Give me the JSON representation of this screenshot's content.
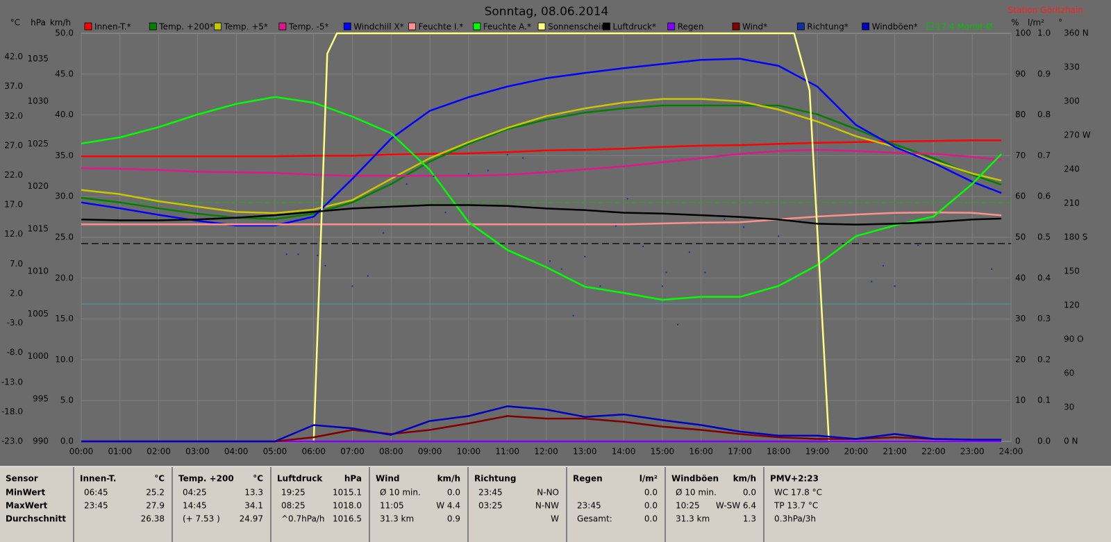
{
  "title": "Sonntag, 08.06.2014",
  "station": "Station Göritzhain",
  "chart_data": {
    "type": "line",
    "xlim": [
      0,
      24
    ],
    "xticks": [
      {
        "value": 0,
        "label": "00:00"
      },
      {
        "value": 1,
        "label": "01:00"
      },
      {
        "value": 2,
        "label": "02:00"
      },
      {
        "value": 3,
        "label": "03:00"
      },
      {
        "value": 4,
        "label": "04:00"
      },
      {
        "value": 5,
        "label": "05:00"
      },
      {
        "value": 6,
        "label": "06:00"
      },
      {
        "value": 7,
        "label": "07:00"
      },
      {
        "value": 8,
        "label": "08:00"
      },
      {
        "value": 9,
        "label": "09:00"
      },
      {
        "value": 10,
        "label": "10:00"
      },
      {
        "value": 11,
        "label": "11:00"
      },
      {
        "value": 12,
        "label": "12:00"
      },
      {
        "value": 13,
        "label": "13:00"
      },
      {
        "value": 14,
        "label": "14:00"
      },
      {
        "value": 15,
        "label": "15:00"
      },
      {
        "value": 16,
        "label": "16:00"
      },
      {
        "value": 17,
        "label": "17:00"
      },
      {
        "value": 18,
        "label": "18:00"
      },
      {
        "value": 19,
        "label": "19:00"
      },
      {
        "value": 20,
        "label": "20:00"
      },
      {
        "value": 21,
        "label": "21:00"
      },
      {
        "value": 22,
        "label": "22:00"
      },
      {
        "value": 23,
        "label": "23:00"
      },
      {
        "value": 24,
        "label": "24:00"
      }
    ],
    "grid": "km/h",
    "axes": [
      {
        "label": "°C",
        "lim": [
          -23,
          46
        ],
        "ticks": [
          {
            "value": 42,
            "label": "42.0"
          },
          {
            "value": 37,
            "label": "37.0"
          },
          {
            "value": 32,
            "label": "32.0"
          },
          {
            "value": 27,
            "label": "27.0"
          },
          {
            "value": 22,
            "label": "22.0"
          },
          {
            "value": 17,
            "label": "17.0"
          },
          {
            "value": 12,
            "label": "12.0"
          },
          {
            "value": 7,
            "label": "7.0"
          },
          {
            "value": 2,
            "label": "2.0"
          },
          {
            "value": -3,
            "label": "-3.0"
          },
          {
            "value": -8,
            "label": "-8.0"
          },
          {
            "value": -13,
            "label": "-13.0"
          },
          {
            "value": -18,
            "label": "-18.0"
          },
          {
            "value": -23,
            "label": "-23.0"
          }
        ]
      },
      {
        "label": "hPa",
        "lim": [
          990,
          1038
        ],
        "ticks": [
          1035,
          1030,
          1025,
          1020,
          1015,
          1010,
          1005,
          1000,
          995,
          990
        ]
      },
      {
        "label": "km/h",
        "lim": [
          0,
          50
        ],
        "ticks": [
          {
            "value": 50,
            "label": "50.0"
          },
          {
            "value": 45,
            "label": "45.0"
          },
          {
            "value": 40,
            "label": "40.0"
          },
          {
            "value": 35,
            "label": "35.0"
          },
          {
            "value": 30,
            "label": "30.0"
          },
          {
            "value": 25,
            "label": "25.0"
          },
          {
            "value": 20,
            "label": "20.0"
          },
          {
            "value": 15,
            "label": "15.0"
          },
          {
            "value": 10,
            "label": "10.0"
          },
          {
            "value": 5,
            "label": "5.0"
          },
          {
            "value": 0,
            "label": "0.0"
          }
        ]
      },
      {
        "label": "%",
        "lim": [
          0,
          100
        ],
        "ticks": [
          100,
          90,
          80,
          70,
          60,
          50,
          40,
          30,
          20,
          10,
          0
        ]
      },
      {
        "label": "l/m²",
        "lim": [
          0,
          1
        ],
        "ticks": [
          {
            "value": 1,
            "label": "1.0"
          },
          {
            "value": 0.9,
            "label": "0.9"
          },
          {
            "value": 0.8,
            "label": "0.8"
          },
          {
            "value": 0.7,
            "label": "0.7"
          },
          {
            "value": 0.6,
            "label": "0.6"
          },
          {
            "value": 0.5,
            "label": "0.5"
          },
          {
            "value": 0.4,
            "label": "0.4"
          },
          {
            "value": 0.3,
            "label": "0.3"
          },
          {
            "value": 0.2,
            "label": "0.2"
          },
          {
            "value": 0.1,
            "label": "0.1"
          },
          {
            "value": 0,
            "label": "0.0"
          }
        ]
      },
      {
        "label": "°",
        "lim": [
          0,
          360
        ],
        "ticks": [
          {
            "value": 360,
            "label": "360 N"
          },
          {
            "value": 330,
            "label": "330"
          },
          {
            "value": 300,
            "label": "300"
          },
          {
            "value": 270,
            "label": "270 W"
          },
          {
            "value": 240,
            "label": "240"
          },
          {
            "value": 210,
            "label": "210"
          },
          {
            "value": 180,
            "label": "180 S"
          },
          {
            "value": 150,
            "label": "150"
          },
          {
            "value": 120,
            "label": "120"
          },
          {
            "value": 90,
            "label": "90 O"
          },
          {
            "value": 60,
            "label": "60"
          },
          {
            "value": 30,
            "label": "30"
          },
          {
            "value": 0,
            "label": "0 N"
          }
        ]
      }
    ],
    "x": [
      0,
      1,
      2,
      3,
      4,
      5,
      6,
      7,
      8,
      9,
      10,
      11,
      12,
      13,
      14,
      15,
      16,
      17,
      18,
      19,
      20,
      21,
      22,
      23,
      23.75
    ],
    "series": [
      {
        "name": "Innen-T.*",
        "color": "#ff0000",
        "axis": "°C",
        "values": [
          25.2,
          25.2,
          25.2,
          25.2,
          25.2,
          25.2,
          25.3,
          25.3,
          25.5,
          25.6,
          25.7,
          25.9,
          26.2,
          26.3,
          26.5,
          26.8,
          27.0,
          27.1,
          27.3,
          27.5,
          27.6,
          27.7,
          27.8,
          27.9,
          27.9
        ]
      },
      {
        "name": "Temp. +200*",
        "color": "#008000",
        "axis": "°C",
        "values": [
          18.2,
          17.4,
          16.4,
          15.5,
          14.8,
          14.6,
          15.5,
          17.4,
          20.5,
          24.3,
          27.3,
          29.8,
          31.4,
          32.6,
          33.3,
          33.8,
          33.8,
          33.8,
          33.8,
          32.3,
          29.8,
          27.2,
          24.9,
          22.1,
          20.4
        ]
      },
      {
        "name": "Temp. +5*",
        "color": "#c8c800",
        "axis": "°C",
        "values": [
          19.5,
          18.8,
          17.6,
          16.7,
          15.8,
          15.6,
          16.2,
          17.8,
          21.4,
          24.9,
          27.6,
          30.0,
          32.0,
          33.3,
          34.3,
          34.9,
          34.9,
          34.5,
          33.1,
          31.1,
          28.6,
          26.8,
          24.4,
          22.3,
          21.1
        ]
      },
      {
        "name": "Temp. -5*",
        "color": "#e0168c",
        "axis": "°C",
        "values": [
          23.2,
          23.1,
          22.9,
          22.6,
          22.5,
          22.4,
          22.1,
          21.9,
          21.9,
          21.9,
          21.9,
          22.1,
          22.5,
          23.0,
          23.5,
          24.2,
          24.9,
          25.6,
          26.1,
          26.3,
          26.1,
          25.8,
          25.6,
          25.1,
          24.6
        ]
      },
      {
        "name": "Windchill X*",
        "color": "#0000ff",
        "axis": "°C",
        "values": [
          17.4,
          16.4,
          15.3,
          14.3,
          13.5,
          13.5,
          15.0,
          21.4,
          28.2,
          32.9,
          35.2,
          37.0,
          38.4,
          39.3,
          40.1,
          40.8,
          41.5,
          41.7,
          40.5,
          37.0,
          30.5,
          26.8,
          24.1,
          20.9,
          19.0
        ]
      },
      {
        "name": "Feuchte I.*",
        "color": "#ff9090",
        "axis": "%",
        "values": [
          53.2,
          53.2,
          53.2,
          53.2,
          53.2,
          53.2,
          53.2,
          53.2,
          53.2,
          53.2,
          53.2,
          53.2,
          53.2,
          53.2,
          53.2,
          53.4,
          53.6,
          53.7,
          54.4,
          55.1,
          55.6,
          56.0,
          56.1,
          56.0,
          55.4
        ]
      },
      {
        "name": "Feuchte A.*",
        "color": "#00ff00",
        "axis": "%",
        "values": [
          73.0,
          74.5,
          77.0,
          80.1,
          82.7,
          84.4,
          83.0,
          79.6,
          75.5,
          66.5,
          53.7,
          46.9,
          42.7,
          37.9,
          36.4,
          34.7,
          35.4,
          35.4,
          38.1,
          43.2,
          50.3,
          52.9,
          55.1,
          63.1,
          70.4
        ]
      },
      {
        "name": "Sonnenschein*",
        "color": "#ffff80",
        "axis": "%",
        "x": [
          0,
          6.0,
          6.35,
          6.6,
          18.4,
          18.8,
          19.3,
          23.75
        ],
        "values": [
          0,
          0,
          95,
          100,
          100,
          86,
          0,
          0
        ]
      },
      {
        "name": "Luftdruck*",
        "color": "#000000",
        "axis": "hPa",
        "values": [
          1016.1,
          1016.0,
          1016.0,
          1016.1,
          1016.3,
          1016.6,
          1017.0,
          1017.4,
          1017.6,
          1017.8,
          1017.8,
          1017.7,
          1017.4,
          1017.2,
          1016.9,
          1016.8,
          1016.6,
          1016.4,
          1016.1,
          1015.6,
          1015.5,
          1015.6,
          1015.8,
          1016.1,
          1016.2
        ]
      },
      {
        "name": "Regen",
        "color": "#8000ff",
        "axis": "l/m²",
        "values": [
          0,
          0,
          0,
          0,
          0,
          0,
          0,
          0,
          0,
          0,
          0,
          0,
          0,
          0,
          0,
          0,
          0,
          0,
          0,
          0,
          0,
          0,
          0,
          0,
          0
        ]
      },
      {
        "name": "Wind*",
        "color": "#800000",
        "axis": "km/h",
        "values": [
          0,
          0,
          0,
          0,
          0,
          0,
          0.5,
          1.4,
          0.9,
          1.4,
          2.2,
          3.1,
          2.8,
          2.8,
          2.4,
          1.8,
          1.4,
          0.9,
          0.5,
          0.3,
          0.3,
          0.5,
          0.3,
          0.2,
          0.2
        ]
      },
      {
        "name": "Richtung*",
        "color": "#1030a0",
        "axis": "°",
        "type": "scatter",
        "x": [
          5.3,
          5.6,
          6.1,
          6.3,
          7.0,
          7.4,
          7.8,
          8.4,
          9.1,
          9.4,
          10.0,
          10.5,
          11.0,
          11.4,
          12.1,
          12.4,
          12.7,
          13.0,
          13.4,
          13.8,
          14.1,
          14.5,
          15.0,
          15.1,
          15.4,
          15.7,
          16.1,
          16.6,
          17.1,
          18.0,
          20.4,
          20.7,
          21.0,
          21.6,
          23.5
        ],
        "values": [
          165,
          165,
          164,
          155,
          137,
          146,
          184,
          227,
          234,
          202,
          236,
          239,
          253,
          250,
          159,
          152,
          111,
          163,
          137,
          190,
          214,
          172,
          137,
          149,
          103,
          167,
          149,
          196,
          189,
          181,
          141,
          155,
          137,
          173,
          152
        ]
      },
      {
        "name": "Windböen*",
        "color": "#0000c0",
        "axis": "km/h",
        "values": [
          0,
          0,
          0,
          0,
          0,
          0,
          2.0,
          1.6,
          0.8,
          2.5,
          3.1,
          4.3,
          3.9,
          3.0,
          3.3,
          2.6,
          2.0,
          1.2,
          0.7,
          0.7,
          0.3,
          0.9,
          0.3,
          0.2,
          0.2
        ]
      }
    ],
    "reference_lines": [
      {
        "label": "17.4 Monat-Ø",
        "value": 17.4,
        "axis": "°C",
        "color": "#00c000"
      }
    ]
  },
  "stats": [
    {
      "header": "Sensor",
      "rows": [
        {
          "label": "MinWert"
        },
        {
          "label": "MaxWert"
        },
        {
          "label": "Durchschnitt"
        }
      ]
    },
    {
      "header": "Innen-T.",
      "unit": "°C",
      "rows": [
        {
          "label": "06:45",
          "value": "25.2"
        },
        {
          "label": "23:45",
          "value": "27.9"
        },
        {
          "value": "26.38"
        }
      ]
    },
    {
      "header": "Temp. +200",
      "unit": "°C",
      "rows": [
        {
          "label": "04:25",
          "value": "13.3"
        },
        {
          "label": "14:45",
          "value": "34.1"
        },
        {
          "label": "(+ 7.53 )",
          "value": "24.97"
        }
      ]
    },
    {
      "header": "Luftdruck",
      "unit": "hPa",
      "rows": [
        {
          "label": "19:25",
          "value": "1015.1"
        },
        {
          "label": "08:25",
          "value": "1018.0"
        },
        {
          "label": "^0.7hPa/h",
          "value": "1016.5"
        }
      ]
    },
    {
      "header": "Wind",
      "unit": "km/h",
      "rows": [
        {
          "label": "Ø 10 min.",
          "value": "0.0"
        },
        {
          "label": "11:05",
          "value": "W 4.4"
        },
        {
          "label": "31.3 km",
          "value": "0.9"
        }
      ]
    },
    {
      "header": "Richtung",
      "rows": [
        {
          "label": "23:45",
          "value": "N-NO"
        },
        {
          "label": "03:25",
          "value": "N-NW"
        },
        {
          "value": "W"
        }
      ]
    },
    {
      "header": "Regen",
      "unit": "l/m²",
      "rows": [
        {
          "value": "0.0"
        },
        {
          "label": "23:45",
          "value": "0.0"
        },
        {
          "label": "Gesamt:",
          "value": "0.0"
        }
      ]
    },
    {
      "header": "Windböen",
      "unit": "km/h",
      "rows": [
        {
          "label": "Ø 10 min.",
          "value": "0.0"
        },
        {
          "label": "10:25",
          "value": "W-SW 6.4"
        },
        {
          "label": "31.3 km",
          "value": "1.3"
        }
      ]
    },
    {
      "header": "PMV+2:23",
      "rows": [
        {
          "label": "WC 17.8 °C"
        },
        {
          "label": "TP 13.7 °C"
        },
        {
          "label": "0.3hPa/3h"
        }
      ]
    }
  ]
}
